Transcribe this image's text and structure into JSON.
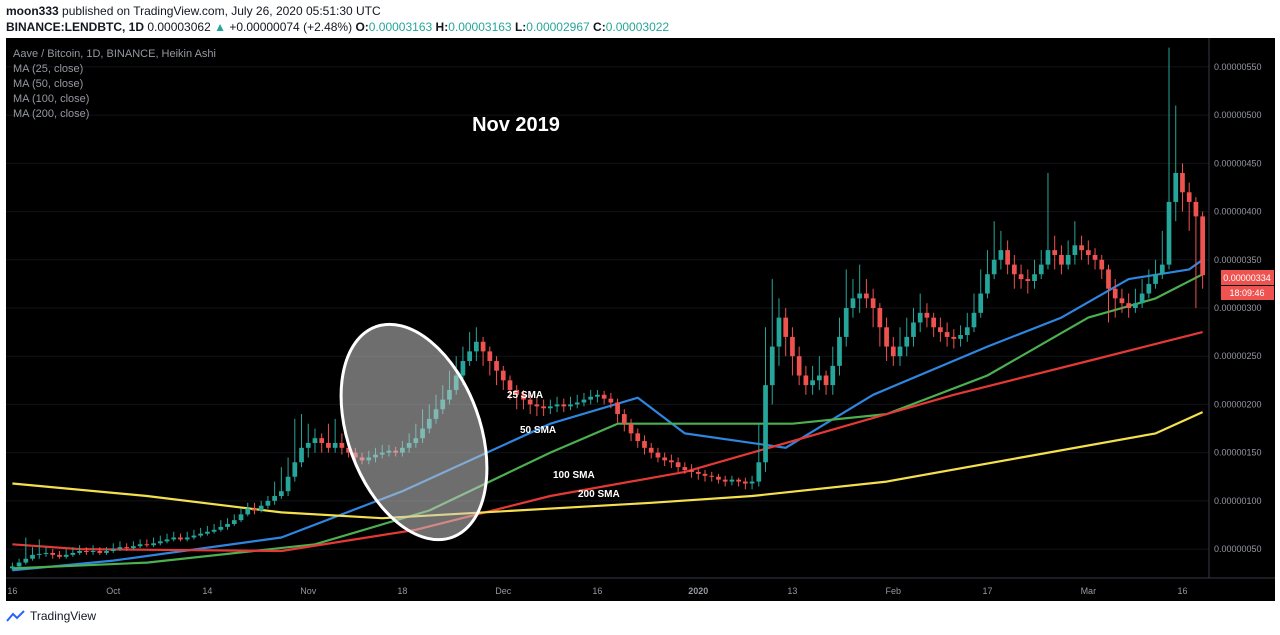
{
  "header": {
    "author": "moon333",
    "published": "published on TradingView.com, July 26, 2020 05:51:30 UTC",
    "symbol": "BINANCE:LENDBTC, 1D",
    "last": "0.00003062",
    "change_arrow": "▲",
    "change": "+0.00000074 (+2.48%)",
    "o_label": "O:",
    "o": "0.00003163",
    "h_label": "H:",
    "h": "0.00003163",
    "l_label": "L:",
    "l": "0.00002967",
    "c_label": "C:",
    "c": "0.00003022"
  },
  "legend": {
    "title": "Aave / Bitcoin, 1D, BINANCE, Heikin Ashi",
    "items": [
      "MA (25, close)",
      "MA (50, close)",
      "MA (100, close)",
      "MA (200, close)"
    ]
  },
  "footer": {
    "brand": "TradingView"
  },
  "colors": {
    "background": "#000000",
    "up": "#26a69a",
    "down": "#ef5350",
    "ma25": "#2e86e0",
    "ma50": "#4caf50",
    "ma100": "#e53935",
    "ma200": "#f4e04d",
    "axis_text": "#9598a1"
  },
  "chart_data": {
    "type": "candlestick",
    "title": "Nov 2019",
    "x_ticks": [
      "16",
      "Oct",
      "14",
      "Nov",
      "18",
      "Dec",
      "16",
      "2020",
      "13",
      "Feb",
      "17",
      "Mar",
      "16"
    ],
    "y_ticks": [
      "0.00000550",
      "0.00000500",
      "0.00000450",
      "0.00000400",
      "0.00000350",
      "0.00000300",
      "0.00000250",
      "0.00000200",
      "0.00000150",
      "0.00000100",
      "0.00000050"
    ],
    "ylim": [
      2e-07,
      5.8e-06
    ],
    "price_label": "0.00000334",
    "countdown_label": "18:09:46",
    "annotations": [
      "25 SMA",
      "50 SMA",
      "100 SMA",
      "200 SMA"
    ],
    "candles": [
      {
        "o": 0.3,
        "c": 0.32,
        "h": 0.36,
        "l": 0.28
      },
      {
        "o": 0.32,
        "c": 0.36,
        "h": 0.4,
        "l": 0.3
      },
      {
        "o": 0.36,
        "c": 0.4,
        "h": 0.62,
        "l": 0.34
      },
      {
        "o": 0.4,
        "c": 0.44,
        "h": 0.52,
        "l": 0.38
      },
      {
        "o": 0.44,
        "c": 0.45,
        "h": 0.6,
        "l": 0.4
      },
      {
        "o": 0.45,
        "c": 0.46,
        "h": 0.52,
        "l": 0.42
      },
      {
        "o": 0.46,
        "c": 0.44,
        "h": 0.5,
        "l": 0.4
      },
      {
        "o": 0.44,
        "c": 0.42,
        "h": 0.48,
        "l": 0.4
      },
      {
        "o": 0.42,
        "c": 0.44,
        "h": 0.5,
        "l": 0.4
      },
      {
        "o": 0.44,
        "c": 0.46,
        "h": 0.52,
        "l": 0.42
      },
      {
        "o": 0.46,
        "c": 0.48,
        "h": 0.54,
        "l": 0.44
      },
      {
        "o": 0.48,
        "c": 0.47,
        "h": 0.52,
        "l": 0.44
      },
      {
        "o": 0.47,
        "c": 0.48,
        "h": 0.54,
        "l": 0.44
      },
      {
        "o": 0.48,
        "c": 0.46,
        "h": 0.52,
        "l": 0.44
      },
      {
        "o": 0.46,
        "c": 0.48,
        "h": 0.52,
        "l": 0.44
      },
      {
        "o": 0.48,
        "c": 0.5,
        "h": 0.56,
        "l": 0.46
      },
      {
        "o": 0.5,
        "c": 0.52,
        "h": 0.58,
        "l": 0.48
      },
      {
        "o": 0.52,
        "c": 0.51,
        "h": 0.56,
        "l": 0.48
      },
      {
        "o": 0.51,
        "c": 0.53,
        "h": 0.58,
        "l": 0.49
      },
      {
        "o": 0.53,
        "c": 0.55,
        "h": 0.6,
        "l": 0.51
      },
      {
        "o": 0.55,
        "c": 0.54,
        "h": 0.6,
        "l": 0.52
      },
      {
        "o": 0.54,
        "c": 0.56,
        "h": 0.62,
        "l": 0.52
      },
      {
        "o": 0.56,
        "c": 0.58,
        "h": 0.64,
        "l": 0.54
      },
      {
        "o": 0.58,
        "c": 0.6,
        "h": 0.66,
        "l": 0.56
      },
      {
        "o": 0.6,
        "c": 0.62,
        "h": 0.68,
        "l": 0.58
      },
      {
        "o": 0.62,
        "c": 0.6,
        "h": 0.66,
        "l": 0.58
      },
      {
        "o": 0.6,
        "c": 0.62,
        "h": 0.68,
        "l": 0.58
      },
      {
        "o": 0.62,
        "c": 0.64,
        "h": 0.7,
        "l": 0.6
      },
      {
        "o": 0.64,
        "c": 0.66,
        "h": 0.72,
        "l": 0.62
      },
      {
        "o": 0.66,
        "c": 0.68,
        "h": 0.74,
        "l": 0.64
      },
      {
        "o": 0.68,
        "c": 0.7,
        "h": 0.76,
        "l": 0.66
      },
      {
        "o": 0.7,
        "c": 0.73,
        "h": 0.8,
        "l": 0.68
      },
      {
        "o": 0.73,
        "c": 0.76,
        "h": 0.82,
        "l": 0.7
      },
      {
        "o": 0.76,
        "c": 0.8,
        "h": 0.86,
        "l": 0.74
      },
      {
        "o": 0.8,
        "c": 0.86,
        "h": 0.92,
        "l": 0.78
      },
      {
        "o": 0.86,
        "c": 0.92,
        "h": 0.98,
        "l": 0.84
      },
      {
        "o": 0.92,
        "c": 0.9,
        "h": 0.98,
        "l": 0.86
      },
      {
        "o": 0.9,
        "c": 0.95,
        "h": 1.0,
        "l": 0.88
      },
      {
        "o": 0.95,
        "c": 1.0,
        "h": 1.05,
        "l": 0.92
      },
      {
        "o": 1.0,
        "c": 1.05,
        "h": 1.2,
        "l": 0.96
      },
      {
        "o": 1.05,
        "c": 1.1,
        "h": 1.35,
        "l": 1.02
      },
      {
        "o": 1.1,
        "c": 1.25,
        "h": 1.45,
        "l": 1.05
      },
      {
        "o": 1.25,
        "c": 1.4,
        "h": 1.85,
        "l": 1.2
      },
      {
        "o": 1.4,
        "c": 1.55,
        "h": 1.9,
        "l": 1.35
      },
      {
        "o": 1.55,
        "c": 1.6,
        "h": 1.8,
        "l": 1.45
      },
      {
        "o": 1.6,
        "c": 1.65,
        "h": 1.75,
        "l": 1.5
      },
      {
        "o": 1.65,
        "c": 1.6,
        "h": 1.7,
        "l": 1.5
      },
      {
        "o": 1.6,
        "c": 1.55,
        "h": 1.8,
        "l": 1.5
      },
      {
        "o": 1.55,
        "c": 1.6,
        "h": 1.85,
        "l": 1.5
      },
      {
        "o": 1.6,
        "c": 1.55,
        "h": 1.7,
        "l": 1.48
      },
      {
        "o": 1.55,
        "c": 1.5,
        "h": 1.6,
        "l": 1.45
      },
      {
        "o": 1.5,
        "c": 1.45,
        "h": 1.55,
        "l": 1.4
      },
      {
        "o": 1.45,
        "c": 1.42,
        "h": 1.5,
        "l": 1.38
      },
      {
        "o": 1.42,
        "c": 1.45,
        "h": 1.52,
        "l": 1.38
      },
      {
        "o": 1.45,
        "c": 1.48,
        "h": 1.55,
        "l": 1.4
      },
      {
        "o": 1.48,
        "c": 1.5,
        "h": 1.58,
        "l": 1.44
      },
      {
        "o": 1.5,
        "c": 1.52,
        "h": 1.58,
        "l": 1.46
      },
      {
        "o": 1.52,
        "c": 1.5,
        "h": 1.56,
        "l": 1.46
      },
      {
        "o": 1.5,
        "c": 1.55,
        "h": 1.62,
        "l": 1.46
      },
      {
        "o": 1.55,
        "c": 1.6,
        "h": 1.7,
        "l": 1.5
      },
      {
        "o": 1.6,
        "c": 1.65,
        "h": 1.8,
        "l": 1.55
      },
      {
        "o": 1.65,
        "c": 1.75,
        "h": 1.95,
        "l": 1.6
      },
      {
        "o": 1.75,
        "c": 1.85,
        "h": 2.0,
        "l": 1.7
      },
      {
        "o": 1.85,
        "c": 1.95,
        "h": 2.1,
        "l": 1.8
      },
      {
        "o": 1.95,
        "c": 2.05,
        "h": 2.2,
        "l": 1.9
      },
      {
        "o": 2.05,
        "c": 2.15,
        "h": 2.35,
        "l": 2.0
      },
      {
        "o": 2.15,
        "c": 2.3,
        "h": 2.5,
        "l": 2.1
      },
      {
        "o": 2.3,
        "c": 2.45,
        "h": 2.6,
        "l": 2.2
      },
      {
        "o": 2.45,
        "c": 2.55,
        "h": 2.75,
        "l": 2.4
      },
      {
        "o": 2.55,
        "c": 2.65,
        "h": 2.8,
        "l": 2.45
      },
      {
        "o": 2.65,
        "c": 2.55,
        "h": 2.7,
        "l": 2.4
      },
      {
        "o": 2.55,
        "c": 2.45,
        "h": 2.6,
        "l": 2.3
      },
      {
        "o": 2.45,
        "c": 2.35,
        "h": 2.5,
        "l": 2.2
      },
      {
        "o": 2.35,
        "c": 2.25,
        "h": 2.4,
        "l": 2.15
      },
      {
        "o": 2.25,
        "c": 2.15,
        "h": 2.3,
        "l": 2.05
      },
      {
        "o": 2.15,
        "c": 2.1,
        "h": 2.2,
        "l": 1.95
      },
      {
        "o": 2.1,
        "c": 2.05,
        "h": 2.15,
        "l": 1.95
      },
      {
        "o": 2.05,
        "c": 2.0,
        "h": 2.1,
        "l": 1.9
      },
      {
        "o": 2.0,
        "c": 1.98,
        "h": 2.08,
        "l": 1.88
      },
      {
        "o": 1.98,
        "c": 1.96,
        "h": 2.05,
        "l": 1.88
      },
      {
        "o": 1.96,
        "c": 1.98,
        "h": 2.05,
        "l": 1.9
      },
      {
        "o": 1.98,
        "c": 2.0,
        "h": 2.08,
        "l": 1.92
      },
      {
        "o": 2.0,
        "c": 1.98,
        "h": 2.06,
        "l": 1.92
      },
      {
        "o": 1.98,
        "c": 2.0,
        "h": 2.08,
        "l": 1.94
      },
      {
        "o": 2.0,
        "c": 2.02,
        "h": 2.1,
        "l": 1.96
      },
      {
        "o": 2.02,
        "c": 2.05,
        "h": 2.12,
        "l": 1.98
      },
      {
        "o": 2.05,
        "c": 2.08,
        "h": 2.15,
        "l": 2.0
      },
      {
        "o": 2.08,
        "c": 2.1,
        "h": 2.15,
        "l": 2.02
      },
      {
        "o": 2.1,
        "c": 2.06,
        "h": 2.14,
        "l": 2.0
      },
      {
        "o": 2.06,
        "c": 2.02,
        "h": 2.12,
        "l": 1.96
      },
      {
        "o": 2.02,
        "c": 1.9,
        "h": 2.06,
        "l": 1.8
      },
      {
        "o": 1.9,
        "c": 1.8,
        "h": 1.95,
        "l": 1.72
      },
      {
        "o": 1.8,
        "c": 1.7,
        "h": 1.85,
        "l": 1.62
      },
      {
        "o": 1.7,
        "c": 1.62,
        "h": 1.75,
        "l": 1.55
      },
      {
        "o": 1.62,
        "c": 1.55,
        "h": 1.68,
        "l": 1.48
      },
      {
        "o": 1.55,
        "c": 1.5,
        "h": 1.6,
        "l": 1.44
      },
      {
        "o": 1.5,
        "c": 1.45,
        "h": 1.55,
        "l": 1.4
      },
      {
        "o": 1.45,
        "c": 1.42,
        "h": 1.5,
        "l": 1.36
      },
      {
        "o": 1.42,
        "c": 1.4,
        "h": 1.48,
        "l": 1.34
      },
      {
        "o": 1.4,
        "c": 1.35,
        "h": 1.45,
        "l": 1.3
      },
      {
        "o": 1.35,
        "c": 1.32,
        "h": 1.4,
        "l": 1.28
      },
      {
        "o": 1.32,
        "c": 1.3,
        "h": 1.38,
        "l": 1.24
      },
      {
        "o": 1.3,
        "c": 1.28,
        "h": 1.34,
        "l": 1.22
      },
      {
        "o": 1.28,
        "c": 1.26,
        "h": 1.32,
        "l": 1.2
      },
      {
        "o": 1.26,
        "c": 1.25,
        "h": 1.3,
        "l": 1.2
      },
      {
        "o": 1.25,
        "c": 1.22,
        "h": 1.28,
        "l": 1.18
      },
      {
        "o": 1.22,
        "c": 1.2,
        "h": 1.26,
        "l": 1.15
      },
      {
        "o": 1.2,
        "c": 1.22,
        "h": 1.26,
        "l": 1.16
      },
      {
        "o": 1.22,
        "c": 1.2,
        "h": 1.24,
        "l": 1.15
      },
      {
        "o": 1.2,
        "c": 1.18,
        "h": 1.24,
        "l": 1.12
      },
      {
        "o": 1.18,
        "c": 1.2,
        "h": 1.26,
        "l": 1.12
      },
      {
        "o": 1.2,
        "c": 1.4,
        "h": 1.8,
        "l": 1.15
      },
      {
        "o": 1.4,
        "c": 2.2,
        "h": 2.8,
        "l": 1.3
      },
      {
        "o": 2.2,
        "c": 2.6,
        "h": 3.3,
        "l": 2.0
      },
      {
        "o": 2.6,
        "c": 2.9,
        "h": 3.1,
        "l": 2.4
      },
      {
        "o": 2.9,
        "c": 2.7,
        "h": 3.0,
        "l": 2.5
      },
      {
        "o": 2.7,
        "c": 2.5,
        "h": 2.8,
        "l": 2.3
      },
      {
        "o": 2.5,
        "c": 2.3,
        "h": 2.6,
        "l": 2.2
      },
      {
        "o": 2.3,
        "c": 2.2,
        "h": 2.4,
        "l": 2.1
      },
      {
        "o": 2.2,
        "c": 2.25,
        "h": 2.4,
        "l": 2.1
      },
      {
        "o": 2.25,
        "c": 2.3,
        "h": 2.5,
        "l": 2.15
      },
      {
        "o": 2.3,
        "c": 2.2,
        "h": 2.35,
        "l": 2.1
      },
      {
        "o": 2.2,
        "c": 2.4,
        "h": 2.6,
        "l": 2.1
      },
      {
        "o": 2.4,
        "c": 2.7,
        "h": 2.9,
        "l": 2.3
      },
      {
        "o": 2.7,
        "c": 3.0,
        "h": 3.4,
        "l": 2.6
      },
      {
        "o": 3.0,
        "c": 3.1,
        "h": 3.3,
        "l": 2.9
      },
      {
        "o": 3.1,
        "c": 3.15,
        "h": 3.45,
        "l": 2.95
      },
      {
        "o": 3.15,
        "c": 3.1,
        "h": 3.3,
        "l": 3.0
      },
      {
        "o": 3.1,
        "c": 3.0,
        "h": 3.2,
        "l": 2.8
      },
      {
        "o": 3.0,
        "c": 2.8,
        "h": 3.05,
        "l": 2.6
      },
      {
        "o": 2.8,
        "c": 2.6,
        "h": 2.9,
        "l": 2.45
      },
      {
        "o": 2.6,
        "c": 2.5,
        "h": 2.7,
        "l": 2.4
      },
      {
        "o": 2.5,
        "c": 2.6,
        "h": 2.8,
        "l": 2.4
      },
      {
        "o": 2.6,
        "c": 2.7,
        "h": 2.9,
        "l": 2.5
      },
      {
        "o": 2.7,
        "c": 2.85,
        "h": 3.0,
        "l": 2.6
      },
      {
        "o": 2.85,
        "c": 2.95,
        "h": 3.15,
        "l": 2.75
      },
      {
        "o": 2.95,
        "c": 2.9,
        "h": 3.05,
        "l": 2.8
      },
      {
        "o": 2.9,
        "c": 2.8,
        "h": 2.95,
        "l": 2.7
      },
      {
        "o": 2.8,
        "c": 2.75,
        "h": 2.9,
        "l": 2.65
      },
      {
        "o": 2.75,
        "c": 2.7,
        "h": 2.85,
        "l": 2.6
      },
      {
        "o": 2.7,
        "c": 2.68,
        "h": 2.78,
        "l": 2.58
      },
      {
        "o": 2.68,
        "c": 2.72,
        "h": 2.82,
        "l": 2.6
      },
      {
        "o": 2.72,
        "c": 2.8,
        "h": 2.95,
        "l": 2.65
      },
      {
        "o": 2.8,
        "c": 2.95,
        "h": 3.15,
        "l": 2.75
      },
      {
        "o": 2.95,
        "c": 3.15,
        "h": 3.4,
        "l": 2.9
      },
      {
        "o": 3.15,
        "c": 3.35,
        "h": 3.6,
        "l": 3.1
      },
      {
        "o": 3.35,
        "c": 3.5,
        "h": 3.9,
        "l": 3.3
      },
      {
        "o": 3.5,
        "c": 3.6,
        "h": 3.8,
        "l": 3.4
      },
      {
        "o": 3.6,
        "c": 3.45,
        "h": 3.7,
        "l": 3.35
      },
      {
        "o": 3.45,
        "c": 3.35,
        "h": 3.55,
        "l": 3.2
      },
      {
        "o": 3.35,
        "c": 3.3,
        "h": 3.45,
        "l": 3.2
      },
      {
        "o": 3.3,
        "c": 3.28,
        "h": 3.4,
        "l": 3.15
      },
      {
        "o": 3.28,
        "c": 3.35,
        "h": 3.5,
        "l": 3.2
      },
      {
        "o": 3.35,
        "c": 3.45,
        "h": 3.6,
        "l": 3.3
      },
      {
        "o": 3.45,
        "c": 3.6,
        "h": 4.4,
        "l": 3.4
      },
      {
        "o": 3.6,
        "c": 3.55,
        "h": 3.75,
        "l": 3.4
      },
      {
        "o": 3.55,
        "c": 3.45,
        "h": 3.65,
        "l": 3.35
      },
      {
        "o": 3.45,
        "c": 3.55,
        "h": 3.7,
        "l": 3.4
      },
      {
        "o": 3.55,
        "c": 3.65,
        "h": 3.9,
        "l": 3.45
      },
      {
        "o": 3.65,
        "c": 3.6,
        "h": 3.75,
        "l": 3.5
      },
      {
        "o": 3.6,
        "c": 3.55,
        "h": 3.7,
        "l": 3.45
      },
      {
        "o": 3.55,
        "c": 3.5,
        "h": 3.62,
        "l": 3.4
      },
      {
        "o": 3.5,
        "c": 3.4,
        "h": 3.55,
        "l": 3.3
      },
      {
        "o": 3.4,
        "c": 3.2,
        "h": 3.45,
        "l": 2.85
      },
      {
        "o": 3.2,
        "c": 3.1,
        "h": 3.3,
        "l": 2.9
      },
      {
        "o": 3.1,
        "c": 3.05,
        "h": 3.2,
        "l": 2.95
      },
      {
        "o": 3.05,
        "c": 3.0,
        "h": 3.15,
        "l": 2.9
      },
      {
        "o": 3.0,
        "c": 3.05,
        "h": 3.2,
        "l": 2.95
      },
      {
        "o": 3.05,
        "c": 3.15,
        "h": 3.3,
        "l": 3.0
      },
      {
        "o": 3.15,
        "c": 3.25,
        "h": 3.4,
        "l": 3.1
      },
      {
        "o": 3.25,
        "c": 3.35,
        "h": 3.5,
        "l": 3.2
      },
      {
        "o": 3.35,
        "c": 3.45,
        "h": 3.8,
        "l": 3.3
      },
      {
        "o": 3.45,
        "c": 4.1,
        "h": 5.7,
        "l": 3.4
      },
      {
        "o": 4.1,
        "c": 4.4,
        "h": 5.1,
        "l": 3.9
      },
      {
        "o": 4.4,
        "c": 4.2,
        "h": 4.5,
        "l": 4.0
      },
      {
        "o": 4.2,
        "c": 4.1,
        "h": 4.3,
        "l": 3.8
      },
      {
        "o": 4.1,
        "c": 3.95,
        "h": 4.15,
        "l": 3.0
      },
      {
        "o": 3.95,
        "c": 3.34,
        "h": 4.0,
        "l": 3.2
      }
    ],
    "series": [
      {
        "name": "MA (25, close)",
        "color": "#2e86e0",
        "x": [
          0,
          15,
          40,
          58,
          80,
          93,
          100,
          115,
          128,
          145,
          156,
          166,
          175,
          183
        ],
        "values": [
          0.28,
          0.38,
          0.62,
          1.1,
          1.8,
          2.07,
          1.7,
          1.55,
          2.1,
          2.6,
          2.9,
          3.3,
          3.4,
          3.5
        ]
      },
      {
        "name": "MA (50, close)",
        "color": "#4caf50",
        "x": [
          0,
          20,
          45,
          62,
          80,
          90,
          100,
          116,
          130,
          145,
          160,
          170,
          183
        ],
        "values": [
          0.3,
          0.36,
          0.55,
          0.9,
          1.5,
          1.8,
          1.8,
          1.8,
          1.9,
          2.3,
          2.9,
          3.1,
          3.35
        ]
      },
      {
        "name": "MA (100, close)",
        "color": "#e53935",
        "x": [
          0,
          10,
          40,
          60,
          80,
          100,
          120,
          140,
          160,
          183
        ],
        "values": [
          0.55,
          0.5,
          0.48,
          0.7,
          1.05,
          1.3,
          1.7,
          2.1,
          2.45,
          2.75
        ]
      },
      {
        "name": "MA (200, close)",
        "color": "#f4e04d",
        "x": [
          0,
          20,
          40,
          55,
          75,
          95,
          110,
          130,
          150,
          170,
          183
        ],
        "values": [
          1.18,
          1.05,
          0.88,
          0.82,
          0.9,
          0.98,
          1.05,
          1.2,
          1.45,
          1.7,
          1.92
        ]
      }
    ]
  }
}
